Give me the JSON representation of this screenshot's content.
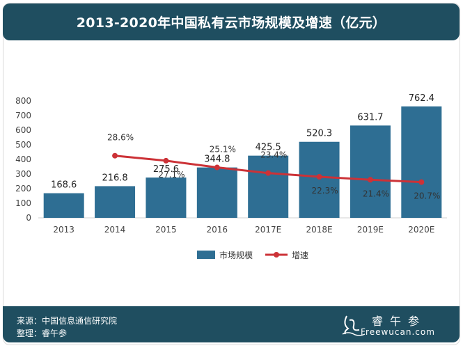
{
  "title": "2013-2020年中国私有云市场规模及增速（亿元）",
  "footer": {
    "source": "来源：中国信息通信研究院",
    "editor": "整理：睿午参",
    "logo_name": "睿午参",
    "logo_url": "Freewucan.com"
  },
  "colors": {
    "bar": "#2e6e93",
    "line": "#cc3237",
    "header": "#1f4e60"
  },
  "chart_data": {
    "type": "bar",
    "categories": [
      "2013",
      "2014",
      "2015",
      "2016",
      "2017E",
      "2018E",
      "2019E",
      "2020E"
    ],
    "ylim": [
      0,
      800
    ],
    "yticks": [
      0,
      100,
      200,
      300,
      400,
      500,
      600,
      700,
      800
    ],
    "grid": false,
    "legend_position": "bottom",
    "series": [
      {
        "name": "市场规模",
        "kind": "bar",
        "values": [
          168.6,
          216.8,
          275.6,
          344.8,
          425.5,
          520.3,
          631.7,
          762.4
        ],
        "labels": [
          "168.6",
          "216.8",
          "275.6",
          "344.8",
          "425.5",
          "520.3",
          "631.7",
          "762.4"
        ]
      },
      {
        "name": "增速",
        "kind": "line",
        "values": [
          null,
          28.6,
          27.1,
          25.1,
          23.4,
          22.3,
          21.4,
          20.7
        ],
        "labels": [
          "",
          "28.6%",
          "27.1%",
          "25.1%",
          "23.4%",
          "22.3%",
          "21.4%",
          "20.7%"
        ]
      }
    ]
  }
}
